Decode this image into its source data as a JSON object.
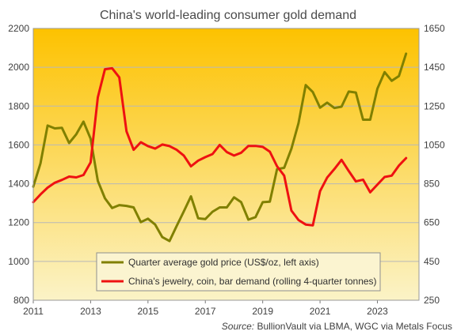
{
  "chart_data": {
    "type": "line",
    "title": "China's world-leading  consumer  gold demand",
    "source_label": "Source:",
    "source_text": " BullionVault via LBMA, WGC via Metals Focus",
    "xlim": [
      2011,
      2024.45
    ],
    "x_ticks": [
      2011,
      2013,
      2015,
      2017,
      2019,
      2021,
      2023
    ],
    "x_tick_labels": [
      "2011",
      "2013",
      "2015",
      "2017",
      "2019",
      "2021",
      "2023"
    ],
    "y_left": {
      "ylim": [
        800,
        2200
      ],
      "ticks": [
        800,
        1000,
        1200,
        1400,
        1600,
        1800,
        2000,
        2200
      ],
      "labels": [
        "800",
        "1000",
        "1200",
        "1400",
        "1600",
        "1800",
        "2000",
        "2200"
      ]
    },
    "y_right": {
      "ylim": [
        250,
        1650
      ],
      "ticks": [
        250,
        450,
        650,
        850,
        1050,
        1250,
        1450,
        1650
      ],
      "labels": [
        "250",
        "450",
        "650",
        "850",
        "1050",
        "1250",
        "1450",
        "1650"
      ]
    },
    "grid": "horizontal",
    "legend_position": "bottom-center",
    "colors": {
      "gold_price": "#808000",
      "china_demand": "#ee1111",
      "bg_top": "#fdc200",
      "bg_bottom": "#fbf3c7"
    },
    "series": [
      {
        "name": "Quarter average gold price (US$/oz, left axis)",
        "axis": "left",
        "x": [
          2011.0,
          2011.25,
          2011.5,
          2011.75,
          2012.0,
          2012.25,
          2012.5,
          2012.75,
          2013.0,
          2013.25,
          2013.5,
          2013.75,
          2014.0,
          2014.25,
          2014.5,
          2014.75,
          2015.0,
          2015.25,
          2015.5,
          2015.75,
          2016.0,
          2016.25,
          2016.5,
          2016.75,
          2017.0,
          2017.25,
          2017.5,
          2017.75,
          2018.0,
          2018.25,
          2018.5,
          2018.75,
          2019.0,
          2019.25,
          2019.5,
          2019.75,
          2020.0,
          2020.25,
          2020.5,
          2020.75,
          2021.0,
          2021.25,
          2021.5,
          2021.75,
          2022.0,
          2022.25,
          2022.5,
          2022.75,
          2023.0,
          2023.25,
          2023.5,
          2023.75,
          2024.0
        ],
        "values": [
          1385,
          1505,
          1700,
          1685,
          1688,
          1610,
          1655,
          1720,
          1632,
          1415,
          1325,
          1275,
          1290,
          1286,
          1278,
          1202,
          1220,
          1190,
          1125,
          1105,
          1182,
          1258,
          1335,
          1222,
          1218,
          1256,
          1278,
          1278,
          1330,
          1305,
          1215,
          1228,
          1305,
          1308,
          1475,
          1482,
          1580,
          1712,
          1908,
          1872,
          1792,
          1818,
          1790,
          1797,
          1875,
          1870,
          1730,
          1730,
          1890,
          1975,
          1930,
          1955,
          2070
        ]
      },
      {
        "name": "China's jewelry, coin, bar demand (rolling 4-quarter tonnes)",
        "axis": "right",
        "x": [
          2011.0,
          2011.25,
          2011.5,
          2011.75,
          2012.0,
          2012.25,
          2012.5,
          2012.75,
          2013.0,
          2013.25,
          2013.5,
          2013.75,
          2014.0,
          2014.25,
          2014.5,
          2014.75,
          2015.0,
          2015.25,
          2015.5,
          2015.75,
          2016.0,
          2016.25,
          2016.5,
          2016.75,
          2017.0,
          2017.25,
          2017.5,
          2017.75,
          2018.0,
          2018.25,
          2018.5,
          2018.75,
          2019.0,
          2019.25,
          2019.5,
          2019.75,
          2020.0,
          2020.25,
          2020.5,
          2020.75,
          2021.0,
          2021.25,
          2021.5,
          2021.75,
          2022.0,
          2022.25,
          2022.5,
          2022.75,
          2023.0,
          2023.25,
          2023.5,
          2023.75,
          2024.0
        ],
        "values": [
          755,
          795,
          830,
          855,
          870,
          887,
          883,
          895,
          960,
          1295,
          1440,
          1445,
          1398,
          1120,
          1025,
          1064,
          1044,
          1031,
          1052,
          1044,
          1025,
          995,
          940,
          969,
          987,
          1003,
          1050,
          1013,
          995,
          1010,
          1045,
          1045,
          1040,
          1015,
          940,
          892,
          712,
          663,
          640,
          636,
          812,
          882,
          926,
          973,
          916,
          862,
          871,
          806,
          846,
          885,
          892,
          944,
          982
        ]
      }
    ]
  }
}
